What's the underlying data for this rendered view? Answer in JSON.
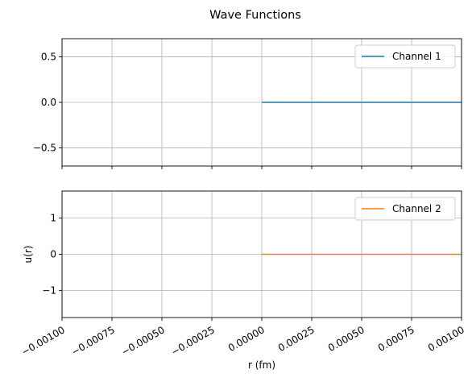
{
  "chart_data": {
    "type": "line",
    "title": "Wave Functions",
    "xlabel": "r (fm)",
    "xlim": [
      -0.001,
      0.001
    ],
    "x_ticks": [
      -0.001,
      -0.00075,
      -0.0005,
      -0.00025,
      0.0,
      0.00025,
      0.0005,
      0.00075,
      0.001
    ],
    "x_tick_labels": [
      "−0.00100",
      "−0.00075",
      "−0.00050",
      "−0.00025",
      "0.00000",
      "0.00025",
      "0.00050",
      "0.00075",
      "0.00100"
    ],
    "grid": true,
    "subplots": [
      {
        "ylabel": "",
        "ylim": [
          -0.7,
          0.7
        ],
        "y_ticks": [
          -0.5,
          0.0,
          0.5
        ],
        "y_tick_labels": [
          "−0.5",
          "0.0",
          "0.5"
        ],
        "legend_position": "top-right",
        "series": [
          {
            "name": "Channel 1",
            "color": "#1f77b4",
            "x": [
              0.0,
              0.001
            ],
            "y": [
              0.0,
              0.0
            ]
          }
        ]
      },
      {
        "ylabel": "u(r)",
        "ylim": [
          -1.75,
          1.75
        ],
        "y_ticks": [
          -1,
          0,
          1
        ],
        "y_tick_labels": [
          "−1",
          "0",
          "1"
        ],
        "legend_position": "top-right",
        "series": [
          {
            "name": "Channel 2",
            "color": "#ff7f0e",
            "x": [
              0.0,
              0.001
            ],
            "y": [
              0.0,
              0.0
            ]
          }
        ]
      }
    ]
  }
}
